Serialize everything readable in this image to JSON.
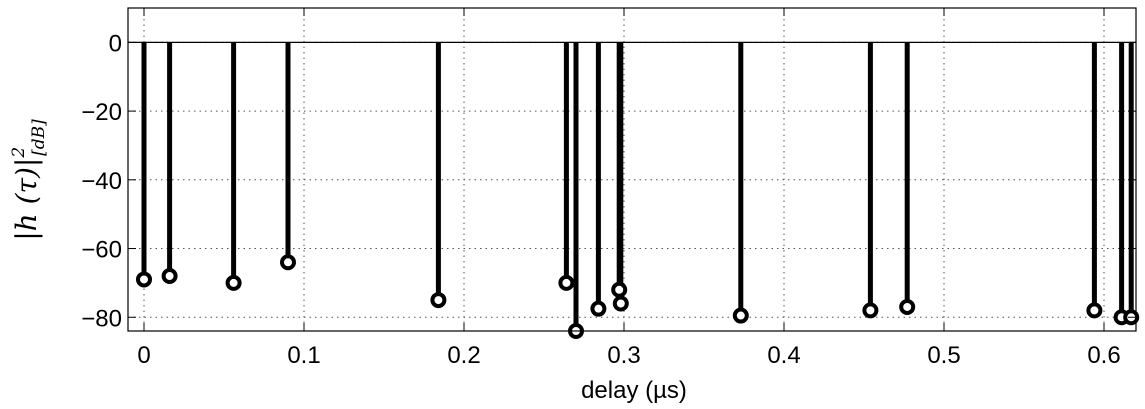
{
  "chart_data": {
    "type": "stem",
    "xlabel": "delay (µs)",
    "ylabel": {
      "main": "|h (τ)|",
      "superscript": "2",
      "subscript": "[dB]"
    },
    "xlim": [
      -0.01,
      0.62
    ],
    "ylim": [
      -84,
      10
    ],
    "xticks": [
      0,
      0.1,
      0.2,
      0.3,
      0.4,
      0.5,
      0.6
    ],
    "xtick_labels": [
      "0",
      "0.1",
      "0.2",
      "0.3",
      "0.4",
      "0.5",
      "0.6"
    ],
    "yticks": [
      0,
      -20,
      -40,
      -60,
      -80
    ],
    "ytick_labels": [
      "0",
      "−20",
      "−40",
      "−60",
      "−80"
    ],
    "grid": true,
    "baseline": 0,
    "x": [
      0.0,
      0.016,
      0.056,
      0.09,
      0.184,
      0.264,
      0.27,
      0.284,
      0.297,
      0.298,
      0.373,
      0.454,
      0.477,
      0.594,
      0.611,
      0.617
    ],
    "y": [
      -69,
      -68,
      -70,
      -64,
      -75,
      -70,
      -84,
      -77.5,
      -72,
      -76,
      -79.5,
      -78,
      -77,
      -78,
      -80,
      -80
    ],
    "marker_color": "#000000",
    "stem_color": "#000000"
  }
}
